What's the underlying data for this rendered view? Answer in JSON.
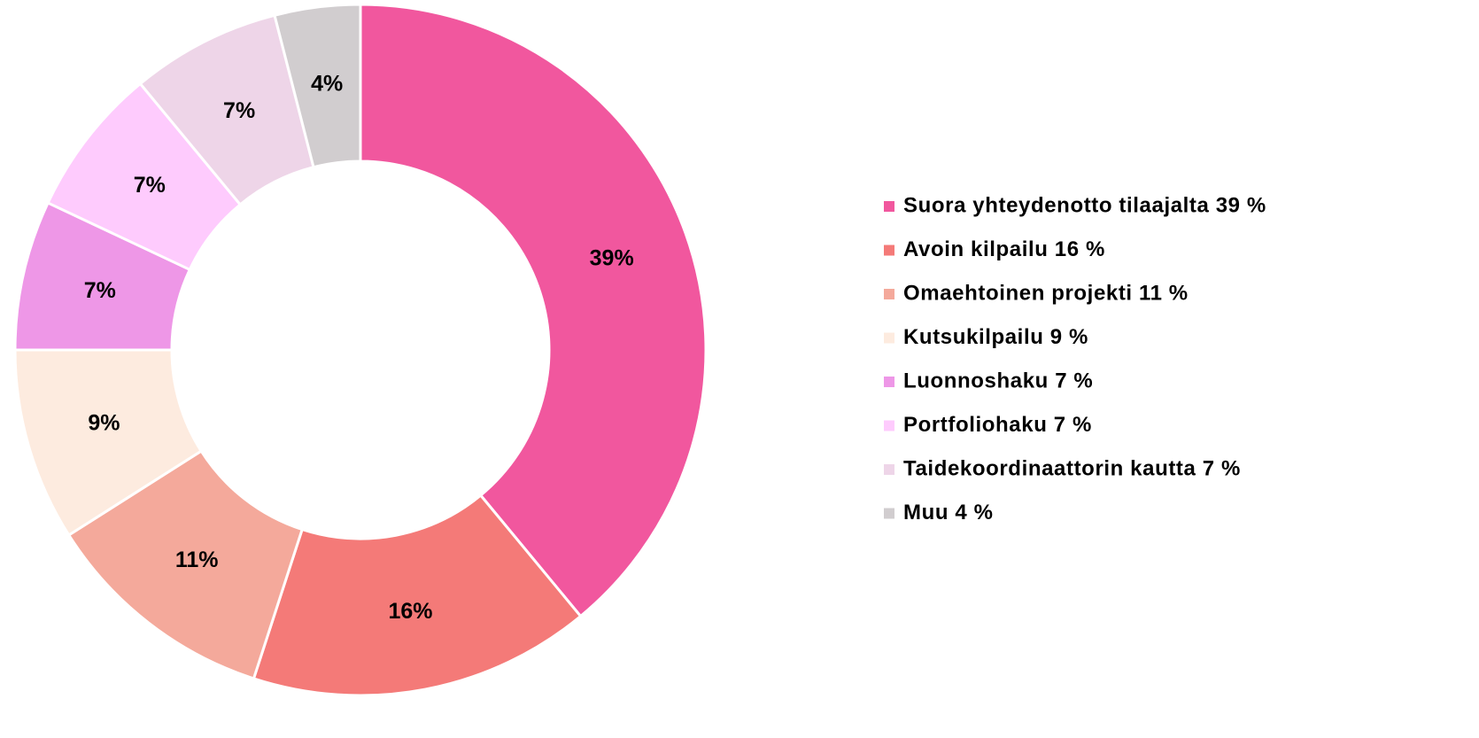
{
  "chart_data": {
    "type": "donut",
    "categories": [
      "Suora yhteydenotto tilaajalta 39 %",
      "Avoin kilpailu 16 %",
      "Omaehtoinen projekti 11 %",
      "Kutsukilpailu 9 %",
      "Luonnoshaku 7 %",
      "Portfoliohaku 7 %",
      "Taidekoordinaattorin kautta 7 %",
      "Muu 4 %"
    ],
    "values": [
      39,
      16,
      11,
      9,
      7,
      7,
      7,
      4
    ],
    "value_labels": [
      "39%",
      "16%",
      "11%",
      "9%",
      "7%",
      "7%",
      "7%",
      "4%"
    ],
    "colors": [
      "#f1579e",
      "#f47a78",
      "#f4a99b",
      "#fdebdf",
      "#ee97e7",
      "#fecbfd",
      "#eed5e8",
      "#d1cdcf"
    ],
    "legend": "right"
  }
}
